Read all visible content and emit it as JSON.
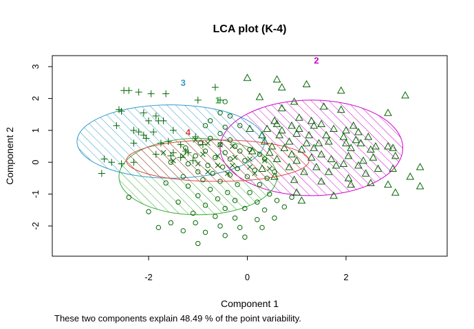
{
  "chart_data": {
    "type": "scatter",
    "title": "LCA plot (K-4)",
    "xlabel": "Component 1",
    "ylabel": "Component 2",
    "caption": "These two components explain 48.49 % of the point variability.",
    "xlim": [
      -4.0,
      4.0
    ],
    "ylim": [
      -3.0,
      3.2
    ],
    "xticks": [
      -2,
      0,
      2
    ],
    "xtick_labels": [
      "-2",
      "0",
      "2"
    ],
    "yticks": [
      -2,
      -1,
      0,
      1,
      2,
      3
    ],
    "ytick_labels": [
      "-2",
      "-1",
      "0",
      "1",
      "2",
      "3"
    ],
    "grid": false,
    "clusters": [
      {
        "label": "2",
        "color": "#cc00cc",
        "marker": "triangle",
        "ellipse": {
          "cx": 1.3,
          "cy": 0.45,
          "rx": 1.85,
          "ry": 1.5
        },
        "label_pos": [
          1.4,
          3.2
        ],
        "points": [
          [
            0.0,
            2.65
          ],
          [
            0.6,
            2.6
          ],
          [
            0.7,
            2.35
          ],
          [
            1.2,
            2.45
          ],
          [
            1.9,
            2.25
          ],
          [
            3.2,
            2.1
          ],
          [
            0.25,
            2.05
          ],
          [
            0.7,
            1.7
          ],
          [
            0.95,
            1.9
          ],
          [
            1.55,
            1.75
          ],
          [
            1.9,
            1.65
          ],
          [
            2.85,
            1.55
          ],
          [
            0.55,
            1.3
          ],
          [
            1.05,
            1.4
          ],
          [
            1.3,
            1.3
          ],
          [
            0.6,
            1.2
          ],
          [
            0.9,
            1.15
          ],
          [
            1.35,
            1.15
          ],
          [
            1.5,
            1.2
          ],
          [
            2.15,
            1.15
          ],
          [
            0.05,
            1.05
          ],
          [
            0.4,
            1.05
          ],
          [
            0.7,
            1.0
          ],
          [
            1.05,
            1.05
          ],
          [
            1.75,
            1.05
          ],
          [
            2.0,
            1.0
          ],
          [
            2.25,
            0.95
          ],
          [
            2.45,
            0.8
          ],
          [
            0.3,
            0.85
          ],
          [
            0.65,
            0.85
          ],
          [
            1.0,
            0.9
          ],
          [
            1.25,
            0.85
          ],
          [
            1.6,
            0.85
          ],
          [
            1.95,
            0.8
          ],
          [
            2.2,
            0.7
          ],
          [
            0.35,
            0.65
          ],
          [
            0.85,
            0.65
          ],
          [
            1.2,
            0.6
          ],
          [
            1.45,
            0.6
          ],
          [
            1.65,
            0.65
          ],
          [
            2.0,
            0.6
          ],
          [
            2.3,
            0.6
          ],
          [
            2.6,
            0.5
          ],
          [
            2.95,
            0.45
          ],
          [
            0.5,
            0.5
          ],
          [
            0.75,
            0.45
          ],
          [
            1.1,
            0.4
          ],
          [
            1.35,
            0.45
          ],
          [
            2.1,
            0.45
          ],
          [
            2.5,
            0.4
          ],
          [
            2.85,
            0.5
          ],
          [
            0.1,
            0.35
          ],
          [
            0.45,
            0.3
          ],
          [
            0.9,
            0.25
          ],
          [
            1.3,
            0.15
          ],
          [
            1.5,
            0.25
          ],
          [
            1.7,
            0.1
          ],
          [
            2.05,
            0.2
          ],
          [
            2.35,
            0.05
          ],
          [
            2.55,
            0.15
          ],
          [
            3.0,
            0.2
          ],
          [
            0.6,
            0.1
          ],
          [
            1.0,
            0.05
          ],
          [
            1.95,
            -0.05
          ],
          [
            2.25,
            -0.1
          ],
          [
            2.65,
            -0.2
          ],
          [
            0.85,
            -0.15
          ],
          [
            1.4,
            -0.15
          ],
          [
            1.8,
            -0.1
          ],
          [
            2.95,
            -0.2
          ],
          [
            3.5,
            -0.15
          ],
          [
            0.3,
            -0.2
          ],
          [
            1.15,
            -0.3
          ],
          [
            1.65,
            -0.3
          ],
          [
            2.4,
            -0.35
          ],
          [
            0.55,
            -0.45
          ],
          [
            2.05,
            -0.5
          ],
          [
            3.3,
            -0.45
          ],
          [
            0.95,
            -0.55
          ],
          [
            1.5,
            -0.6
          ],
          [
            2.1,
            -0.7
          ],
          [
            2.5,
            -0.65
          ],
          [
            2.85,
            -0.7
          ],
          [
            3.5,
            -0.75
          ],
          [
            1.0,
            -0.95
          ],
          [
            3.0,
            -0.95
          ],
          [
            1.75,
            -1.05
          ],
          [
            1.1,
            -1.2
          ]
        ]
      },
      {
        "label": "3",
        "color": "#3399cc",
        "marker": "plus",
        "ellipse": {
          "cx": -1.55,
          "cy": 0.65,
          "rx": 1.9,
          "ry": 1.15
        },
        "label_pos": [
          -1.3,
          2.5
        ],
        "points": [
          [
            -2.5,
            2.25
          ],
          [
            -2.4,
            2.25
          ],
          [
            -2.2,
            2.2
          ],
          [
            -1.95,
            2.15
          ],
          [
            -1.65,
            2.15
          ],
          [
            -0.65,
            2.35
          ],
          [
            -1.0,
            1.95
          ],
          [
            -0.55,
            1.95
          ],
          [
            -2.6,
            1.65
          ],
          [
            -2.55,
            1.6
          ],
          [
            -2.1,
            1.55
          ],
          [
            -1.85,
            1.45
          ],
          [
            -2.0,
            1.3
          ],
          [
            -1.8,
            1.3
          ],
          [
            -1.7,
            1.3
          ],
          [
            -2.65,
            1.15
          ],
          [
            -2.3,
            1.0
          ],
          [
            -2.2,
            0.95
          ],
          [
            -1.9,
            0.95
          ],
          [
            -2.1,
            0.85
          ],
          [
            -1.5,
            1.0
          ],
          [
            -2.05,
            0.75
          ],
          [
            -1.6,
            0.65
          ],
          [
            -1.05,
            0.8
          ],
          [
            -2.3,
            0.6
          ],
          [
            -1.75,
            0.6
          ],
          [
            -1.35,
            0.55
          ],
          [
            -0.9,
            0.55
          ],
          [
            -1.85,
            0.25
          ],
          [
            -1.5,
            0.3
          ],
          [
            -1.2,
            0.3
          ],
          [
            -1.25,
            0.35
          ],
          [
            -1.55,
            0.2
          ],
          [
            -2.3,
            0.0
          ],
          [
            -2.9,
            0.1
          ],
          [
            -2.75,
            0.0
          ],
          [
            -2.55,
            -0.05
          ],
          [
            -2.95,
            -0.35
          ],
          [
            -1.35,
            0.15
          ],
          [
            -1.1,
            0.05
          ]
        ]
      },
      {
        "label": "1",
        "color": "#33aa33",
        "marker": "circle",
        "ellipse": {
          "cx": -1.0,
          "cy": -0.45,
          "rx": 1.6,
          "ry": 1.2
        },
        "label_pos": [
          -0.6,
          1.95
        ],
        "points": [
          [
            -0.45,
            1.9
          ],
          [
            -0.55,
            1.55
          ],
          [
            -0.35,
            1.45
          ],
          [
            -0.75,
            1.3
          ],
          [
            -0.85,
            1.15
          ],
          [
            -0.45,
            1.1
          ],
          [
            -0.15,
            1.15
          ],
          [
            -0.55,
            0.9
          ],
          [
            -0.75,
            0.75
          ],
          [
            -0.35,
            0.7
          ],
          [
            -0.95,
            0.6
          ],
          [
            -0.55,
            0.55
          ],
          [
            -0.25,
            0.5
          ],
          [
            0.05,
            0.4
          ],
          [
            -1.25,
            0.45
          ],
          [
            -0.85,
            0.35
          ],
          [
            -0.45,
            0.3
          ],
          [
            -0.15,
            0.35
          ],
          [
            0.25,
            0.25
          ],
          [
            -1.05,
            0.2
          ],
          [
            -0.65,
            0.15
          ],
          [
            -0.35,
            0.1
          ],
          [
            -0.05,
            0.05
          ],
          [
            0.35,
            0.1
          ],
          [
            -1.55,
            0.0
          ],
          [
            -1.2,
            -0.05
          ],
          [
            -0.8,
            -0.1
          ],
          [
            -0.5,
            -0.15
          ],
          [
            -0.2,
            -0.2
          ],
          [
            0.15,
            -0.25
          ],
          [
            0.55,
            -0.3
          ],
          [
            -1.0,
            -0.3
          ],
          [
            -0.7,
            -0.35
          ],
          [
            -0.35,
            -0.4
          ],
          [
            0.0,
            -0.45
          ],
          [
            0.4,
            -0.5
          ],
          [
            -1.3,
            -0.45
          ],
          [
            -0.9,
            -0.55
          ],
          [
            -0.55,
            -0.6
          ],
          [
            -0.2,
            -0.7
          ],
          [
            0.25,
            -0.7
          ],
          [
            -2.4,
            -1.1
          ],
          [
            -1.65,
            -0.65
          ],
          [
            -1.2,
            -0.75
          ],
          [
            -0.75,
            -0.85
          ],
          [
            -0.4,
            -0.95
          ],
          [
            0.05,
            -0.95
          ],
          [
            0.45,
            -1.0
          ],
          [
            0.9,
            -1.1
          ],
          [
            -1.0,
            -1.05
          ],
          [
            -0.6,
            -1.15
          ],
          [
            -0.25,
            -1.2
          ],
          [
            0.2,
            -1.25
          ],
          [
            0.6,
            -1.2
          ],
          [
            -1.4,
            -1.25
          ],
          [
            -0.85,
            -1.35
          ],
          [
            -0.45,
            -1.45
          ],
          [
            -0.05,
            -1.45
          ],
          [
            0.35,
            -1.5
          ],
          [
            0.75,
            -1.4
          ],
          [
            -2.0,
            -1.55
          ],
          [
            -1.1,
            -1.6
          ],
          [
            -0.65,
            -1.7
          ],
          [
            -0.25,
            -1.75
          ],
          [
            0.2,
            -1.8
          ],
          [
            0.55,
            -1.75
          ],
          [
            -1.55,
            -1.9
          ],
          [
            -1.05,
            -1.9
          ],
          [
            -0.55,
            -2.0
          ],
          [
            -0.15,
            -2.05
          ],
          [
            0.3,
            -2.05
          ],
          [
            -1.8,
            -2.05
          ],
          [
            -1.3,
            -2.15
          ],
          [
            -0.85,
            -2.2
          ],
          [
            -0.45,
            -2.3
          ],
          [
            -0.05,
            -2.35
          ],
          [
            -1.0,
            -2.55
          ]
        ]
      },
      {
        "label": "4",
        "color": "#dd4444",
        "marker": "x",
        "ellipse": {
          "cx": -0.6,
          "cy": 0.05,
          "rx": 1.85,
          "ry": 0.65
        },
        "label_pos": [
          -1.2,
          0.95
        ],
        "points": [
          [
            -1.05,
            0.7
          ],
          [
            -0.8,
            0.6
          ],
          [
            -0.55,
            0.55
          ],
          [
            -0.3,
            0.5
          ],
          [
            -1.7,
            0.3
          ],
          [
            -1.3,
            0.2
          ],
          [
            -0.9,
            0.25
          ],
          [
            -0.6,
            0.2
          ],
          [
            -0.25,
            0.15
          ],
          [
            0.05,
            0.1
          ],
          [
            0.35,
            0.05
          ],
          [
            -1.5,
            0.05
          ],
          [
            -1.0,
            -0.05
          ],
          [
            -0.6,
            -0.1
          ],
          [
            -0.3,
            -0.1
          ],
          [
            0.05,
            -0.15
          ],
          [
            0.45,
            -0.2
          ],
          [
            -0.8,
            -0.3
          ],
          [
            -0.4,
            -0.35
          ],
          [
            0.15,
            -0.35
          ]
        ]
      }
    ]
  }
}
